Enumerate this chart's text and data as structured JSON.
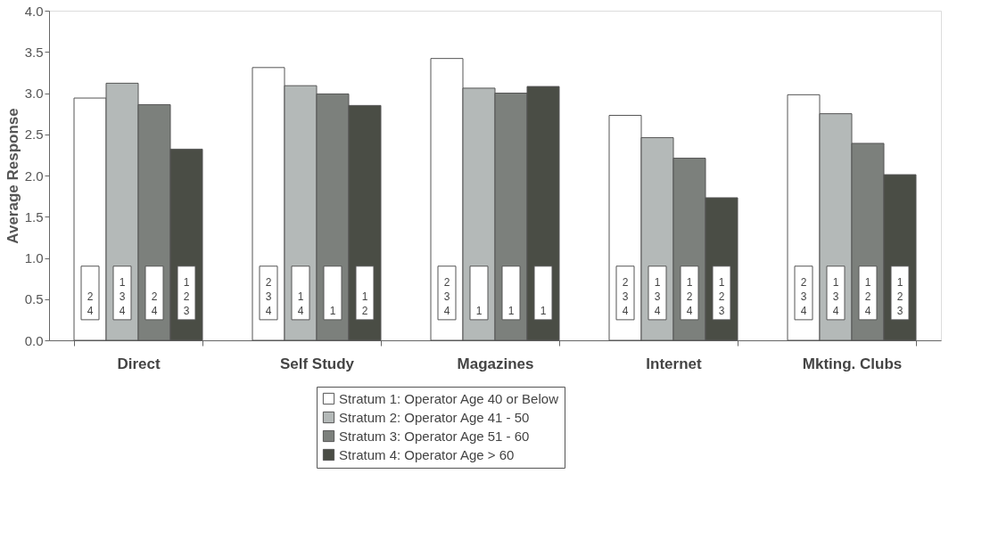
{
  "chart_data": {
    "type": "bar",
    "ylabel": "Average Response",
    "categories": [
      "Direct",
      "Self Study",
      "Magazines",
      "Internet",
      "Mkting. Clubs"
    ],
    "series": [
      {
        "name": "Stratum 1: Operator Age 40 or Below",
        "color": "#ffffff",
        "values": [
          2.94,
          3.31,
          3.42,
          2.73,
          2.98
        ]
      },
      {
        "name": "Stratum 2: Operator Age 41 - 50",
        "color": "#b4b9b8",
        "values": [
          3.12,
          3.09,
          3.06,
          2.46,
          2.75
        ]
      },
      {
        "name": "Stratum 3: Operator Age 51 - 60",
        "color": "#7c807c",
        "values": [
          2.86,
          2.99,
          3.0,
          2.21,
          2.39
        ]
      },
      {
        "name": "Stratum 4: Operator Age > 60",
        "color": "#4a4d45",
        "values": [
          2.32,
          2.85,
          3.08,
          1.73,
          2.01
        ]
      }
    ],
    "annotations": [
      "2\n4",
      "1\n3\n4",
      "2\n4",
      "1\n2\n3",
      "2\n3\n4",
      "1\n4",
      "1",
      "1\n2",
      "2\n3\n4",
      "1",
      "1",
      "1",
      "2\n3\n4",
      "1\n3\n4",
      "1\n2\n4",
      "1\n2\n3",
      "2\n3\n4",
      "1\n3\n4",
      "1\n2\n4",
      "1\n2\n3"
    ],
    "ylim": [
      0,
      4
    ],
    "yticks": [
      {
        "value": 0,
        "label": "0.0"
      },
      0.5,
      {
        "value": 1,
        "label": "1.0"
      },
      1.5,
      {
        "value": 2,
        "label": "2.0"
      },
      2.5,
      {
        "value": 3,
        "label": "3.0"
      },
      3.5,
      {
        "value": 4,
        "label": "4.0"
      }
    ],
    "grid": false,
    "legend": "bottom"
  }
}
